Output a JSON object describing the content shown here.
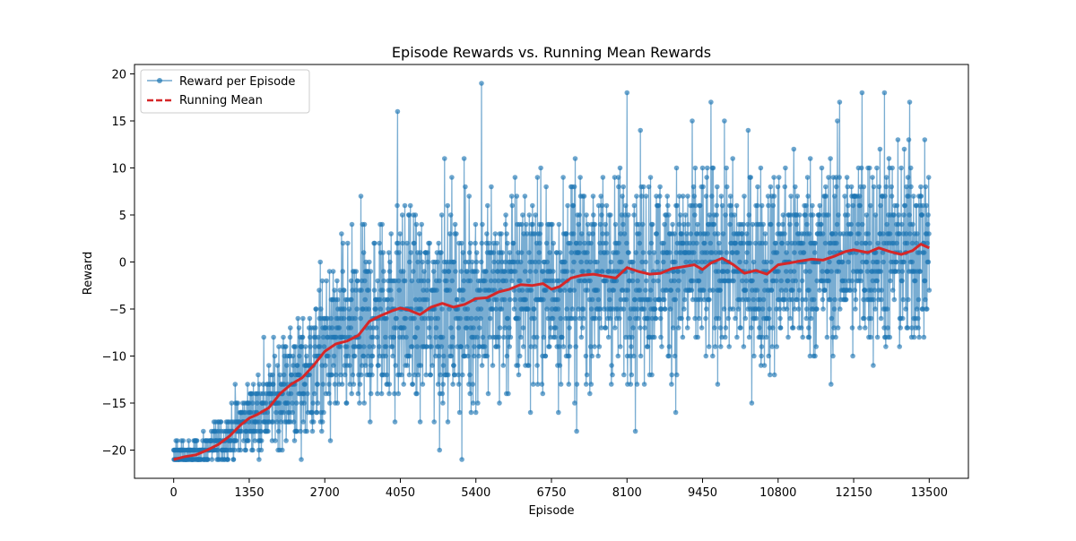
{
  "chart_data": {
    "type": "line",
    "title": "Episode Rewards vs. Running Mean Rewards",
    "xlabel": "Episode",
    "ylabel": "Reward",
    "xlim": [
      -700,
      14200
    ],
    "ylim": [
      -23,
      21
    ],
    "xticks": [
      0,
      1350,
      2700,
      4050,
      5400,
      6750,
      8100,
      9450,
      10800,
      12150,
      13500
    ],
    "yticks": [
      -20,
      -15,
      -10,
      -5,
      0,
      5,
      10,
      15,
      20
    ],
    "grid": false,
    "legend_position": "top-left",
    "series": [
      {
        "name": "Reward per Episode",
        "color": "#1f77b4",
        "style": "solid line with circle markers",
        "episode_count": 13500,
        "envelope_x": [
          0,
          500,
          1000,
          1350,
          1700,
          2000,
          2300,
          2700,
          3000,
          3300,
          3700,
          4050,
          4500,
          5000,
          5400,
          6000,
          6750,
          7500,
          8100,
          9000,
          9450,
          10000,
          10800,
          11500,
          12150,
          12800,
          13500
        ],
        "envelope_max": [
          -17,
          -16,
          -12,
          -9,
          -5,
          -3,
          3,
          6,
          9,
          11,
          11,
          13,
          13,
          14,
          15,
          15,
          15,
          15,
          15,
          15,
          16,
          15,
          15,
          15,
          16,
          16,
          15
        ],
        "envelope_min": [
          -21,
          -21,
          -21,
          -21,
          -21,
          -20,
          -20,
          -19,
          -19,
          -19,
          -18,
          -18,
          -18,
          -18,
          -17,
          -17,
          -17,
          -16,
          -16,
          -16,
          -16,
          -16,
          -16,
          -16,
          -16,
          -16,
          -16
        ],
        "spikes": [
          [
            5500,
            19
          ],
          [
            4000,
            16
          ],
          [
            8100,
            18
          ],
          [
            9600,
            17
          ],
          [
            11900,
            17
          ],
          [
            12300,
            18
          ],
          [
            12700,
            18
          ],
          [
            13150,
            17
          ],
          [
            5150,
            -21
          ],
          [
            2280,
            -21
          ],
          [
            4750,
            -20
          ],
          [
            7200,
            -18
          ],
          [
            8250,
            -18
          ]
        ]
      },
      {
        "name": "Running Mean",
        "color": "#d62728",
        "style": "dashed",
        "x": [
          0,
          200,
          400,
          600,
          800,
          1000,
          1200,
          1350,
          1500,
          1700,
          1900,
          2100,
          2300,
          2500,
          2700,
          2900,
          3100,
          3300,
          3500,
          3700,
          3900,
          4050,
          4200,
          4400,
          4600,
          4800,
          5000,
          5200,
          5400,
          5600,
          5800,
          6000,
          6200,
          6400,
          6600,
          6750,
          6900,
          7100,
          7300,
          7500,
          7700,
          7900,
          8100,
          8300,
          8500,
          8700,
          8900,
          9100,
          9300,
          9450,
          9600,
          9800,
          10000,
          10200,
          10400,
          10600,
          10800,
          11000,
          11200,
          11400,
          11600,
          11800,
          12000,
          12150,
          12400,
          12600,
          12800,
          13000,
          13200,
          13350,
          13500
        ],
        "y": [
          -21,
          -20.7,
          -20.5,
          -20,
          -19.4,
          -18.5,
          -17.3,
          -16.6,
          -16.2,
          -15.5,
          -14,
          -13,
          -12.3,
          -11,
          -9.5,
          -8.7,
          -8.4,
          -7.8,
          -6.3,
          -5.7,
          -5.2,
          -4.9,
          -5.1,
          -5.6,
          -4.8,
          -4.4,
          -4.8,
          -4.5,
          -3.9,
          -3.8,
          -3.2,
          -2.9,
          -2.4,
          -2.5,
          -2.3,
          -2.9,
          -2.6,
          -1.7,
          -1.4,
          -1.3,
          -1.5,
          -1.7,
          -0.6,
          -1,
          -1.3,
          -1.2,
          -0.7,
          -0.5,
          -0.3,
          -0.8,
          -0.1,
          0.4,
          -0.3,
          -1.2,
          -0.9,
          -1.3,
          -0.3,
          -0.1,
          0.1,
          0.3,
          0.2,
          0.6,
          1.1,
          1.3,
          1.0,
          1.5,
          1.1,
          0.8,
          1.2,
          1.9,
          1.5
        ]
      }
    ]
  }
}
